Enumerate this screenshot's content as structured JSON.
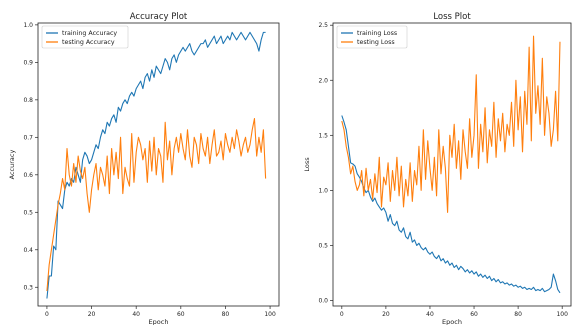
{
  "colors": {
    "train": "#1f77b4",
    "test": "#ff7f0e"
  },
  "chart_data": [
    {
      "type": "line",
      "title": "Accuracy Plot",
      "xlabel": "Epoch",
      "ylabel": "Accuracy",
      "xlim": [
        -4,
        104
      ],
      "ylim": [
        0.25,
        1.005
      ],
      "xticks": [
        0,
        20,
        40,
        60,
        80,
        100
      ],
      "xtick_labels": [
        "0",
        "20",
        "40",
        "60",
        "80",
        "100"
      ],
      "yticks": [
        0.3,
        0.4,
        0.5,
        0.6,
        0.7,
        0.8,
        0.9,
        1.0
      ],
      "ytick_labels": [
        "0.3",
        "0.4",
        "0.5",
        "0.6",
        "0.7",
        "0.8",
        "0.9",
        "1.0"
      ],
      "legend": "top-left",
      "series": [
        {
          "name": "training Accuracy",
          "color_key": "train",
          "values": [
            0.27,
            0.33,
            0.33,
            0.41,
            0.4,
            0.53,
            0.52,
            0.51,
            0.56,
            0.58,
            0.57,
            0.59,
            0.58,
            0.62,
            0.6,
            0.58,
            0.64,
            0.66,
            0.65,
            0.63,
            0.64,
            0.66,
            0.68,
            0.67,
            0.7,
            0.72,
            0.71,
            0.74,
            0.73,
            0.75,
            0.76,
            0.74,
            0.78,
            0.77,
            0.79,
            0.8,
            0.79,
            0.81,
            0.82,
            0.81,
            0.83,
            0.84,
            0.85,
            0.83,
            0.86,
            0.87,
            0.85,
            0.88,
            0.86,
            0.89,
            0.88,
            0.87,
            0.89,
            0.91,
            0.9,
            0.88,
            0.91,
            0.92,
            0.9,
            0.92,
            0.93,
            0.94,
            0.93,
            0.94,
            0.95,
            0.93,
            0.92,
            0.93,
            0.94,
            0.95,
            0.95,
            0.96,
            0.94,
            0.95,
            0.96,
            0.97,
            0.95,
            0.96,
            0.97,
            0.95,
            0.96,
            0.97,
            0.96,
            0.98,
            0.97,
            0.96,
            0.97,
            0.98,
            0.97,
            0.96,
            0.97,
            0.98,
            0.97,
            0.96,
            0.95,
            0.93,
            0.96,
            0.98,
            0.98
          ]
        },
        {
          "name": "testing Accuracy",
          "color_key": "test",
          "values": [
            0.29,
            0.36,
            0.4,
            0.44,
            0.48,
            0.52,
            0.55,
            0.59,
            0.56,
            0.67,
            0.6,
            0.57,
            0.63,
            0.58,
            0.65,
            0.61,
            0.59,
            0.62,
            0.55,
            0.5,
            0.56,
            0.6,
            0.63,
            0.56,
            0.62,
            0.6,
            0.57,
            0.65,
            0.55,
            0.67,
            0.6,
            0.66,
            0.59,
            0.7,
            0.55,
            0.62,
            0.59,
            0.57,
            0.71,
            0.58,
            0.66,
            0.7,
            0.68,
            0.64,
            0.67,
            0.58,
            0.69,
            0.61,
            0.7,
            0.6,
            0.67,
            0.65,
            0.58,
            0.74,
            0.64,
            0.69,
            0.6,
            0.67,
            0.7,
            0.66,
            0.71,
            0.67,
            0.64,
            0.72,
            0.65,
            0.62,
            0.7,
            0.68,
            0.63,
            0.71,
            0.67,
            0.65,
            0.7,
            0.63,
            0.68,
            0.72,
            0.65,
            0.66,
            0.69,
            0.64,
            0.71,
            0.68,
            0.66,
            0.7,
            0.67,
            0.72,
            0.69,
            0.65,
            0.68,
            0.7,
            0.66,
            0.68,
            0.72,
            0.75,
            0.65,
            0.7,
            0.66,
            0.72,
            0.59
          ]
        }
      ]
    },
    {
      "type": "line",
      "title": "Loss Plot",
      "xlabel": "Epoch",
      "ylabel": "Loss",
      "xlim": [
        -4,
        104
      ],
      "ylim": [
        -0.05,
        2.52
      ],
      "xticks": [
        0,
        20,
        40,
        60,
        80,
        100
      ],
      "xtick_labels": [
        "0",
        "20",
        "40",
        "60",
        "80",
        "100"
      ],
      "yticks": [
        0.0,
        0.5,
        1.0,
        1.5,
        2.0,
        2.5
      ],
      "ytick_labels": [
        "0.0",
        "0.5",
        "1.0",
        "1.5",
        "2.0",
        "2.5"
      ],
      "legend": "top-left",
      "series": [
        {
          "name": "training Loss",
          "color_key": "train",
          "values": [
            1.68,
            1.62,
            1.55,
            1.4,
            1.25,
            1.24,
            1.22,
            1.15,
            1.12,
            1.08,
            1.02,
            0.98,
            1.0,
            0.94,
            0.9,
            0.93,
            0.88,
            0.85,
            0.82,
            0.84,
            0.8,
            0.72,
            0.78,
            0.7,
            0.68,
            0.72,
            0.64,
            0.62,
            0.66,
            0.58,
            0.56,
            0.62,
            0.53,
            0.55,
            0.5,
            0.52,
            0.48,
            0.46,
            0.48,
            0.44,
            0.42,
            0.44,
            0.4,
            0.38,
            0.41,
            0.36,
            0.38,
            0.34,
            0.36,
            0.32,
            0.34,
            0.3,
            0.32,
            0.28,
            0.31,
            0.29,
            0.26,
            0.28,
            0.25,
            0.27,
            0.24,
            0.26,
            0.22,
            0.24,
            0.21,
            0.23,
            0.2,
            0.22,
            0.18,
            0.2,
            0.17,
            0.19,
            0.16,
            0.17,
            0.15,
            0.16,
            0.14,
            0.15,
            0.13,
            0.14,
            0.12,
            0.13,
            0.11,
            0.12,
            0.1,
            0.11,
            0.1,
            0.12,
            0.09,
            0.1,
            0.09,
            0.11,
            0.08,
            0.09,
            0.1,
            0.12,
            0.24,
            0.18,
            0.1,
            0.07
          ]
        },
        {
          "name": "testing Loss",
          "color_key": "test",
          "values": [
            1.63,
            1.55,
            1.4,
            1.3,
            1.15,
            1.22,
            1.08,
            1.0,
            1.05,
            1.18,
            0.95,
            1.2,
            1.0,
            1.1,
            0.92,
            1.15,
            0.98,
            1.3,
            0.85,
            1.12,
            1.05,
            1.25,
            0.9,
            1.18,
            1.0,
            1.3,
            0.95,
            1.22,
            0.85,
            1.1,
            0.95,
            1.25,
            0.9,
            1.18,
            1.05,
            1.4,
            1.0,
            1.55,
            1.1,
            1.45,
            1.2,
            1.0,
            1.3,
            0.95,
            1.55,
            1.15,
            1.4,
            1.2,
            0.8,
            1.5,
            1.3,
            1.6,
            1.2,
            1.45,
            1.1,
            1.55,
            1.35,
            1.2,
            1.65,
            1.3,
            1.5,
            2.05,
            1.2,
            1.6,
            1.35,
            1.75,
            1.25,
            1.55,
            1.4,
            1.8,
            1.3,
            1.65,
            1.45,
            1.7,
            1.35,
            1.6,
            1.5,
            1.8,
            1.4,
            2.0,
            1.55,
            1.85,
            1.35,
            1.9,
            1.6,
            2.3,
            1.45,
            2.4,
            1.7,
            1.95,
            1.6,
            2.2,
            1.5,
            1.85,
            1.7,
            1.4,
            1.55,
            1.9,
            1.45,
            2.35
          ]
        }
      ]
    }
  ]
}
